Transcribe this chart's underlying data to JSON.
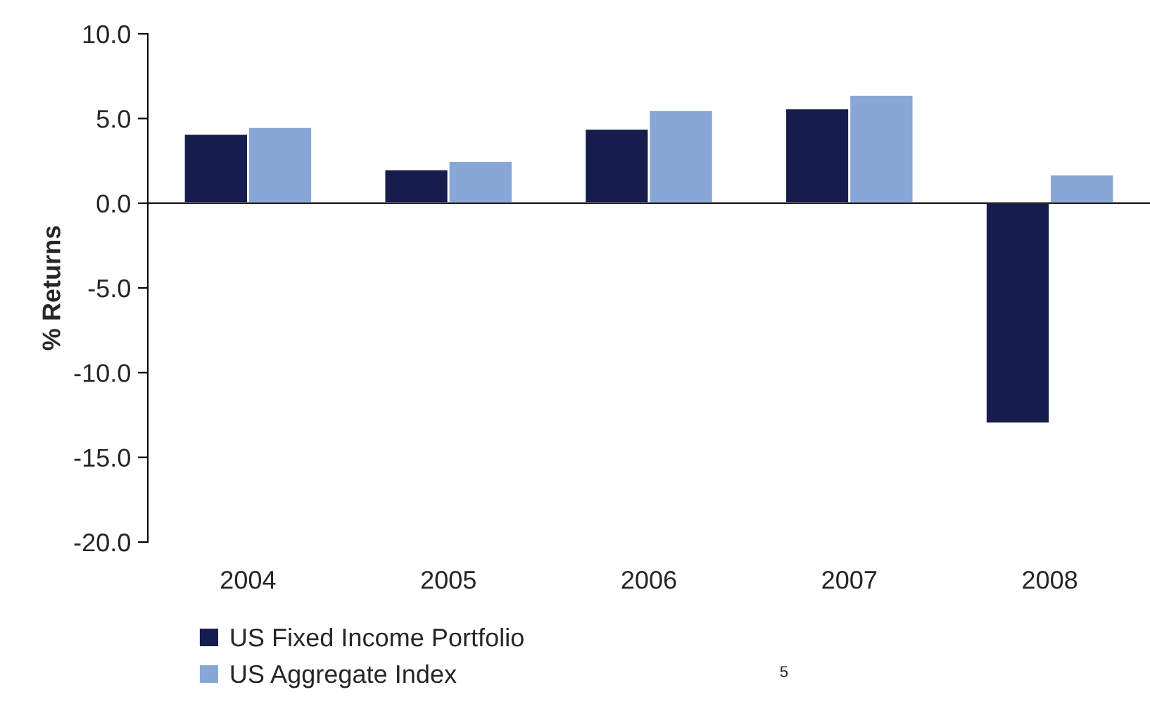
{
  "chart_data": {
    "type": "bar",
    "ylabel": "% Returns",
    "categories": [
      "2004",
      "2005",
      "2006",
      "2007",
      "2008"
    ],
    "series": [
      {
        "name": "US Fixed Income Portfolio",
        "color": "#161d4c",
        "values": [
          4.1,
          2.0,
          4.4,
          5.6,
          -13.0
        ]
      },
      {
        "name": "US Aggregate Index",
        "color": "#88a7d6",
        "values": [
          4.5,
          2.5,
          5.5,
          6.4,
          1.7
        ]
      }
    ],
    "ylim": [
      -20,
      10
    ],
    "yticks": [
      {
        "value": -20,
        "label": "-20.0"
      },
      {
        "value": -15,
        "label": "-15.0"
      },
      {
        "value": -10,
        "label": "-10.0"
      },
      {
        "value": -5,
        "label": "-5.0"
      },
      {
        "value": 0,
        "label": "0.0"
      },
      {
        "value": 5,
        "label": "5.0"
      },
      {
        "value": 10,
        "label": "10.0"
      }
    ],
    "legend": "bottom left",
    "annotations": [
      "5"
    ]
  }
}
